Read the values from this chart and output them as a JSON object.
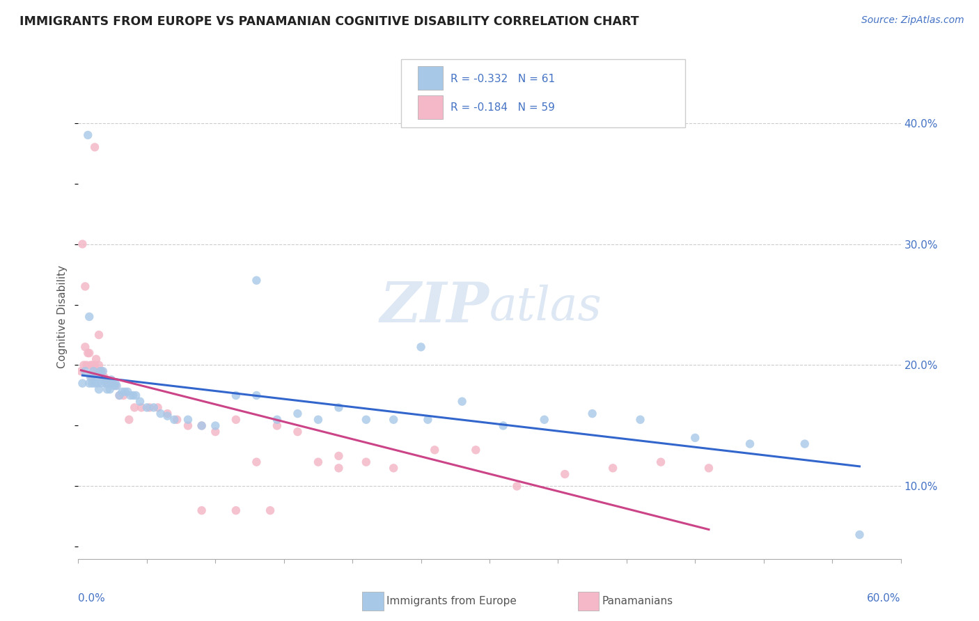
{
  "title": "IMMIGRANTS FROM EUROPE VS PANAMANIAN COGNITIVE DISABILITY CORRELATION CHART",
  "source_text": "Source: ZipAtlas.com",
  "ylabel": "Cognitive Disability",
  "xlim": [
    0.0,
    0.6
  ],
  "ylim": [
    0.04,
    0.44
  ],
  "yticks": [
    0.1,
    0.2,
    0.3,
    0.4
  ],
  "legend1_R": "-0.332",
  "legend1_N": "61",
  "legend2_R": "-0.184",
  "legend2_N": "59",
  "blue_color": "#a8c8e8",
  "pink_color": "#f4b8c8",
  "blue_line_color": "#3366cc",
  "pink_line_color": "#cc4488",
  "watermark_color": "#dde8f4",
  "blue_scatter_x": [
    0.003,
    0.005,
    0.007,
    0.008,
    0.009,
    0.01,
    0.011,
    0.012,
    0.013,
    0.014,
    0.015,
    0.016,
    0.017,
    0.018,
    0.019,
    0.02,
    0.021,
    0.022,
    0.023,
    0.024,
    0.025,
    0.026,
    0.027,
    0.028,
    0.03,
    0.032,
    0.034,
    0.036,
    0.038,
    0.04,
    0.042,
    0.045,
    0.05,
    0.055,
    0.06,
    0.065,
    0.07,
    0.08,
    0.09,
    0.1,
    0.115,
    0.13,
    0.145,
    0.16,
    0.175,
    0.19,
    0.21,
    0.23,
    0.255,
    0.28,
    0.31,
    0.34,
    0.375,
    0.41,
    0.45,
    0.49,
    0.53,
    0.57,
    0.008,
    0.13,
    0.25
  ],
  "blue_scatter_y": [
    0.185,
    0.195,
    0.39,
    0.185,
    0.19,
    0.185,
    0.195,
    0.185,
    0.19,
    0.185,
    0.18,
    0.195,
    0.185,
    0.195,
    0.188,
    0.185,
    0.18,
    0.185,
    0.18,
    0.188,
    0.185,
    0.183,
    0.185,
    0.183,
    0.175,
    0.178,
    0.178,
    0.178,
    0.175,
    0.175,
    0.175,
    0.17,
    0.165,
    0.165,
    0.16,
    0.158,
    0.155,
    0.155,
    0.15,
    0.15,
    0.175,
    0.175,
    0.155,
    0.16,
    0.155,
    0.165,
    0.155,
    0.155,
    0.155,
    0.17,
    0.15,
    0.155,
    0.16,
    0.155,
    0.14,
    0.135,
    0.135,
    0.06,
    0.24,
    0.27,
    0.215
  ],
  "pink_scatter_x": [
    0.002,
    0.003,
    0.004,
    0.005,
    0.006,
    0.007,
    0.008,
    0.009,
    0.01,
    0.01,
    0.011,
    0.012,
    0.012,
    0.013,
    0.014,
    0.015,
    0.016,
    0.017,
    0.018,
    0.019,
    0.02,
    0.021,
    0.022,
    0.023,
    0.025,
    0.027,
    0.03,
    0.033,
    0.037,
    0.041,
    0.046,
    0.052,
    0.058,
    0.065,
    0.072,
    0.08,
    0.09,
    0.1,
    0.115,
    0.13,
    0.145,
    0.16,
    0.175,
    0.19,
    0.21,
    0.23,
    0.26,
    0.29,
    0.32,
    0.355,
    0.39,
    0.425,
    0.46,
    0.005,
    0.015,
    0.09,
    0.115,
    0.14,
    0.19
  ],
  "pink_scatter_y": [
    0.195,
    0.3,
    0.2,
    0.215,
    0.2,
    0.21,
    0.21,
    0.2,
    0.2,
    0.19,
    0.195,
    0.2,
    0.38,
    0.205,
    0.195,
    0.2,
    0.195,
    0.195,
    0.19,
    0.19,
    0.188,
    0.185,
    0.185,
    0.185,
    0.185,
    0.183,
    0.175,
    0.175,
    0.155,
    0.165,
    0.165,
    0.165,
    0.165,
    0.16,
    0.155,
    0.15,
    0.15,
    0.145,
    0.155,
    0.12,
    0.15,
    0.145,
    0.12,
    0.115,
    0.12,
    0.115,
    0.13,
    0.13,
    0.1,
    0.11,
    0.115,
    0.12,
    0.115,
    0.265,
    0.225,
    0.08,
    0.08,
    0.08,
    0.125
  ]
}
